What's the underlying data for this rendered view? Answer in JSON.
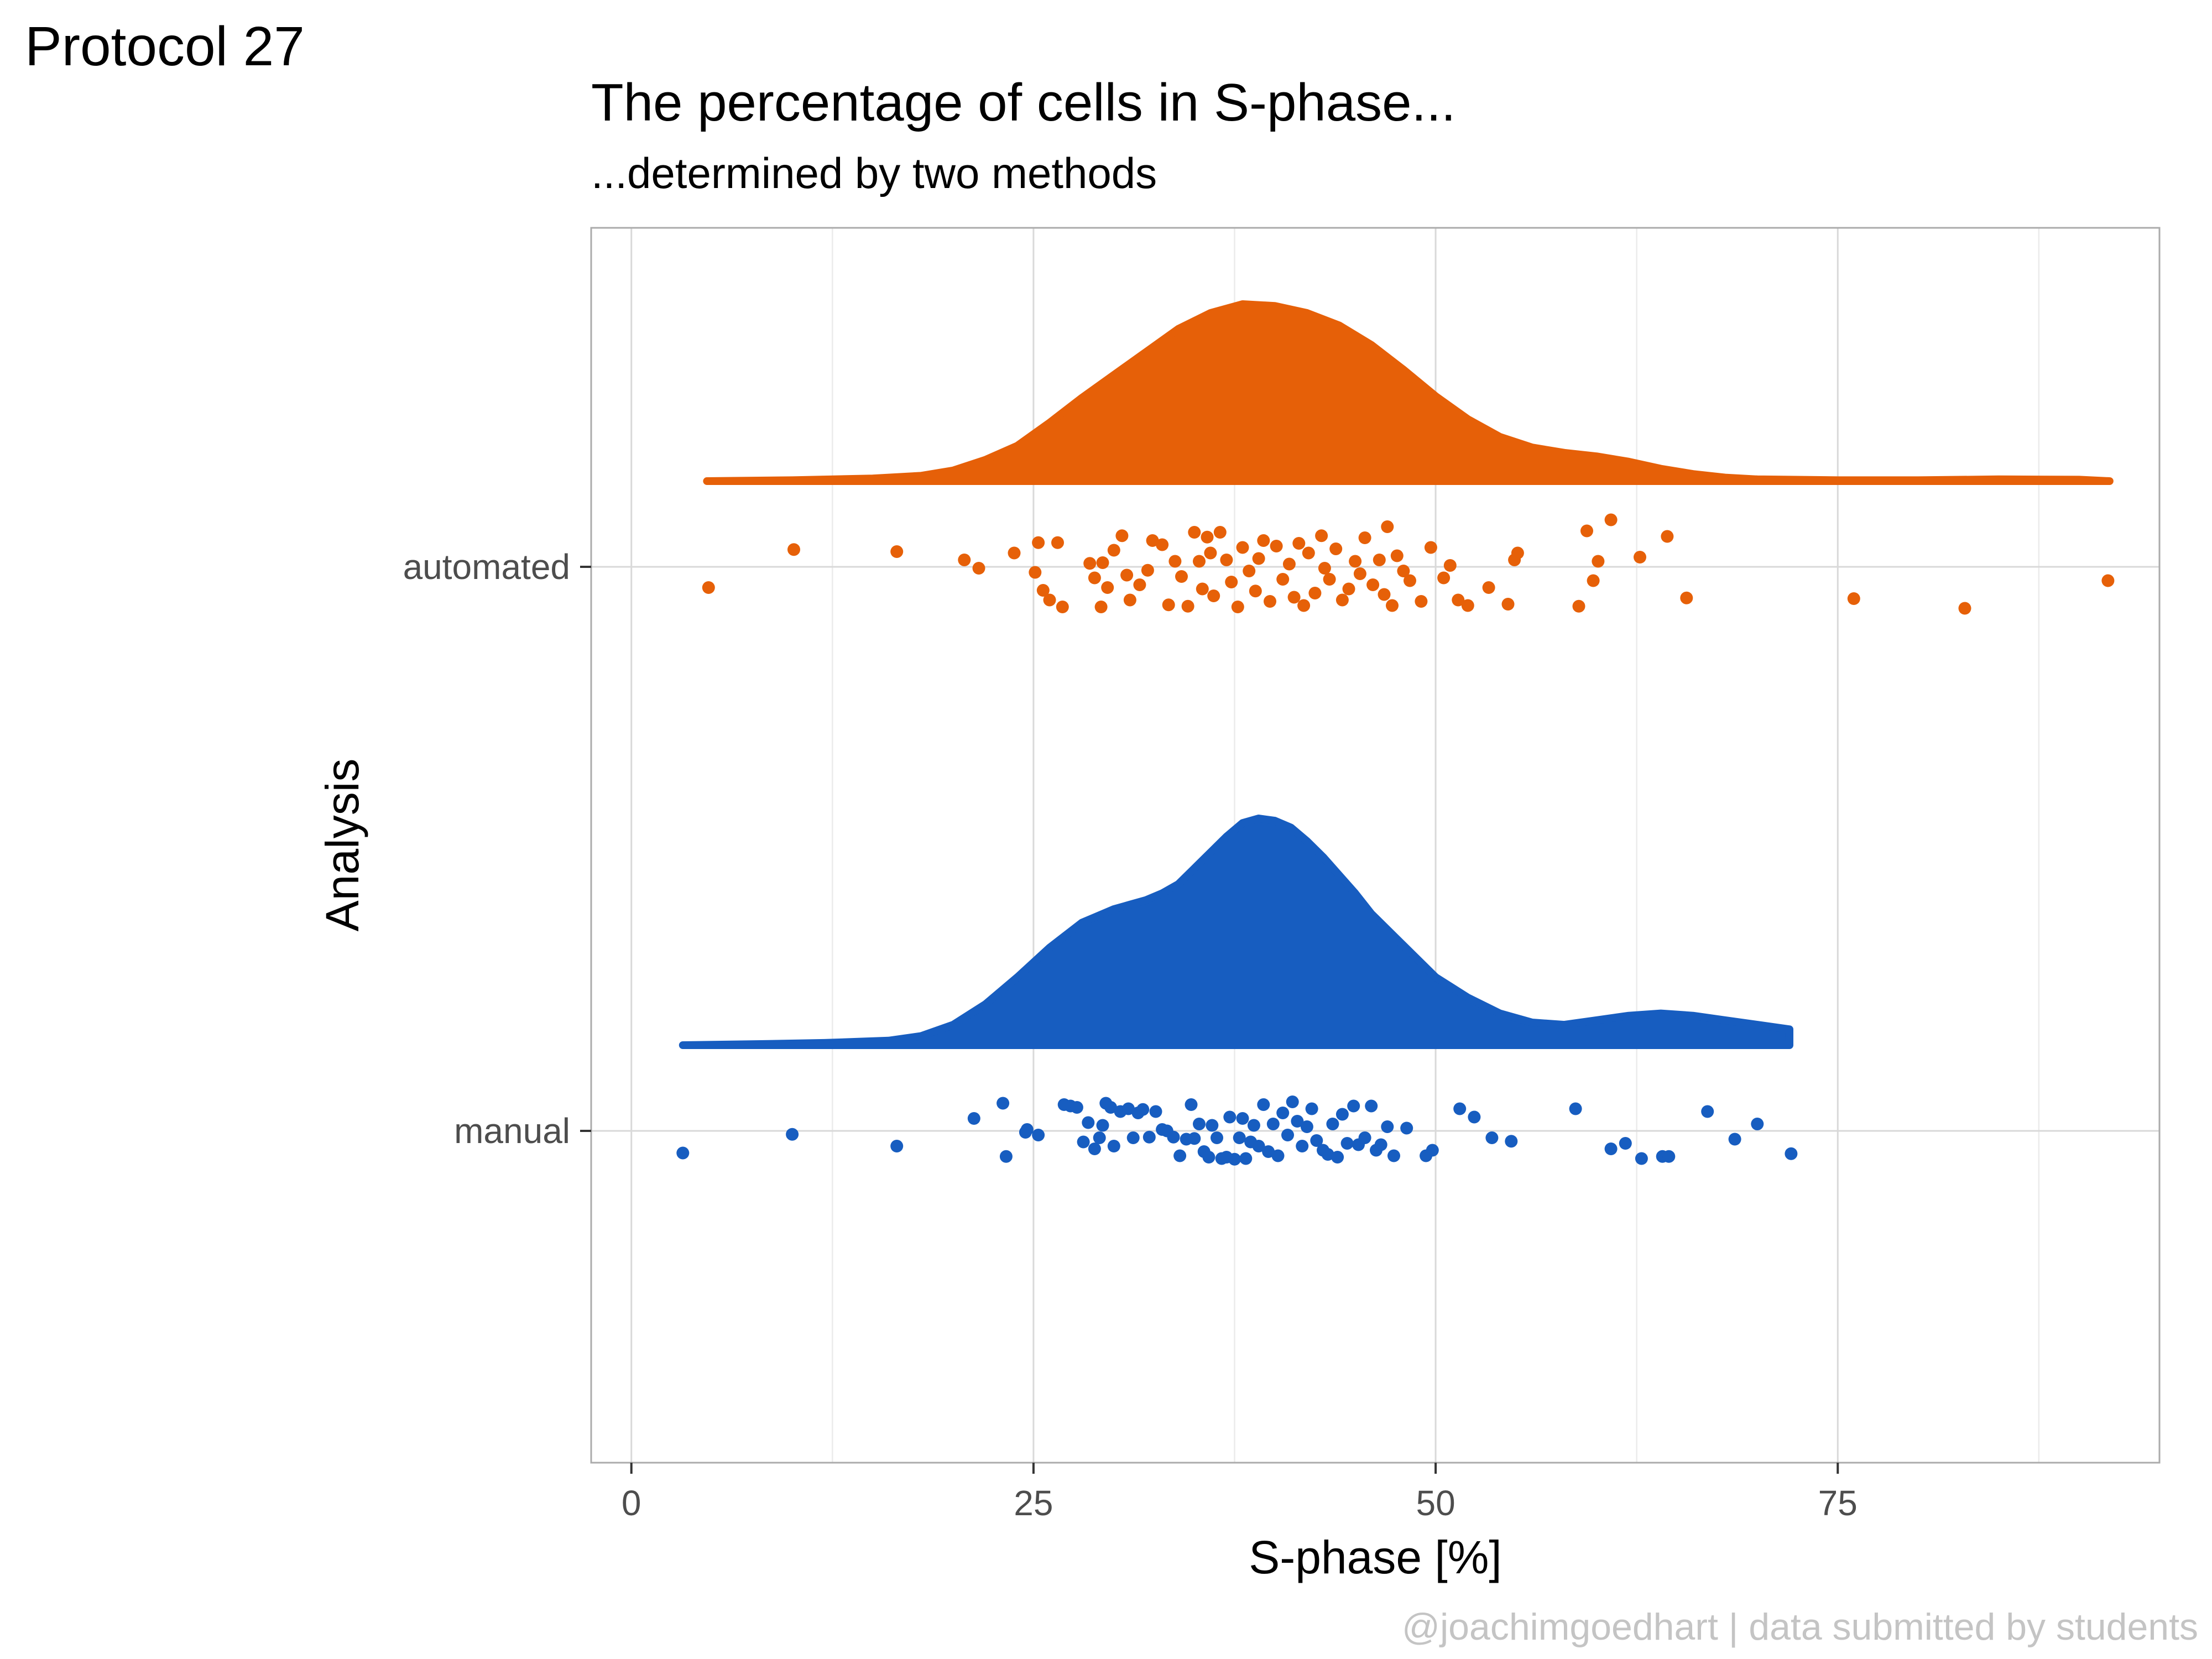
{
  "protocol_label": "Protocol 27",
  "title": "The percentage of cells in S-phase...",
  "subtitle": "...determined by two methods",
  "caption": "@joachimgoedhart | data submitted by students",
  "chart_data": {
    "type": "raincloud",
    "xlabel": "S-phase [%]",
    "ylabel": "Analysis",
    "xlim": [
      -2.5,
      95
    ],
    "x_ticks": [
      0,
      25,
      50,
      75
    ],
    "x_tick_labels": [
      "0",
      "25",
      "50",
      "75"
    ],
    "categories": [
      "automated",
      "manual"
    ],
    "grid": true,
    "series": [
      {
        "name": "automated",
        "color": "#E66008",
        "density": {
          "x": [
            4.7,
            10,
            15,
            18,
            20,
            22,
            24,
            26,
            28,
            30,
            32,
            34,
            36,
            38,
            40,
            42,
            44,
            46,
            48,
            50,
            52,
            54,
            56,
            58,
            60,
            62,
            64,
            66,
            68,
            70,
            75,
            80,
            85,
            90,
            91.9
          ],
          "height": [
            0,
            0.005,
            0.015,
            0.03,
            0.06,
            0.12,
            0.2,
            0.33,
            0.47,
            0.6,
            0.73,
            0.86,
            0.95,
            1.0,
            0.99,
            0.95,
            0.88,
            0.77,
            0.63,
            0.48,
            0.35,
            0.25,
            0.19,
            0.16,
            0.14,
            0.11,
            0.07,
            0.04,
            0.02,
            0.01,
            0.005,
            0.005,
            0.01,
            0.008,
            0
          ]
        },
        "points": [
          4.8,
          10.1,
          16.5,
          20.7,
          21.6,
          23.8,
          25.1,
          25.3,
          25.6,
          26.0,
          26.5,
          26.8,
          28.5,
          28.8,
          29.2,
          29.3,
          29.6,
          30.0,
          30.5,
          30.8,
          31.0,
          31.6,
          32.1,
          32.4,
          33.0,
          33.4,
          33.8,
          34.2,
          34.6,
          35.0,
          35.3,
          35.5,
          35.8,
          36.0,
          36.2,
          36.6,
          37.0,
          37.3,
          37.7,
          38.0,
          38.4,
          38.8,
          39.0,
          39.3,
          39.7,
          40.1,
          40.5,
          40.9,
          41.2,
          41.5,
          41.8,
          42.1,
          42.5,
          42.9,
          43.1,
          43.4,
          43.8,
          44.2,
          44.6,
          45.0,
          45.3,
          45.6,
          46.1,
          46.5,
          46.8,
          47.0,
          47.3,
          47.6,
          48.0,
          48.4,
          49.1,
          49.7,
          50.5,
          50.9,
          51.4,
          52.0,
          53.3,
          54.5,
          54.9,
          55.1,
          58.9,
          59.4,
          59.8,
          60.1,
          60.9,
          62.7,
          64.4,
          65.6,
          76.0,
          82.9,
          91.8
        ],
        "jitter": [
          0.3,
          -0.25,
          -0.22,
          -0.1,
          0.02,
          -0.2,
          0.08,
          -0.35,
          0.34,
          0.48,
          -0.35,
          0.58,
          -0.05,
          0.16,
          0.58,
          -0.06,
          0.3,
          -0.24,
          -0.45,
          0.12,
          0.48,
          0.26,
          0.05,
          -0.38,
          -0.32,
          0.55,
          -0.08,
          0.14,
          0.57,
          -0.5,
          -0.08,
          0.32,
          -0.43,
          -0.2,
          0.42,
          -0.5,
          -0.1,
          0.22,
          0.58,
          -0.28,
          0.06,
          0.35,
          -0.12,
          -0.38,
          0.5,
          -0.3,
          0.18,
          -0.04,
          0.44,
          -0.34,
          0.56,
          -0.2,
          0.38,
          -0.45,
          0.02,
          0.18,
          -0.26,
          0.48,
          0.32,
          -0.08,
          0.1,
          -0.42,
          0.26,
          -0.1,
          0.4,
          -0.58,
          0.56,
          -0.16,
          0.06,
          0.2,
          0.5,
          -0.28,
          0.16,
          -0.02,
          0.48,
          0.56,
          0.3,
          0.54,
          -0.1,
          -0.2,
          0.57,
          -0.52,
          0.2,
          -0.08,
          -0.68,
          -0.14,
          -0.44,
          0.45,
          0.46,
          0.6,
          0.2
        ]
      },
      {
        "name": "manual",
        "color": "#175DC0",
        "density": {
          "x": [
            3.2,
            8,
            12,
            16,
            18,
            20,
            22,
            24,
            26,
            28,
            30,
            31,
            32,
            33,
            34,
            35,
            36,
            37,
            38,
            39,
            40,
            41,
            42,
            43,
            44,
            45,
            46,
            48,
            50,
            52,
            54,
            56,
            58,
            60,
            62,
            64,
            66,
            68,
            70,
            72
          ],
          "height": [
            0,
            0.005,
            0.01,
            0.02,
            0.04,
            0.09,
            0.18,
            0.3,
            0.43,
            0.54,
            0.6,
            0.62,
            0.64,
            0.67,
            0.71,
            0.78,
            0.85,
            0.92,
            0.98,
            1.0,
            0.99,
            0.96,
            0.9,
            0.83,
            0.75,
            0.67,
            0.58,
            0.44,
            0.3,
            0.21,
            0.14,
            0.1,
            0.09,
            0.11,
            0.13,
            0.14,
            0.13,
            0.11,
            0.09,
            0.07
          ]
        },
        "points": [
          3.2,
          10.0,
          16.5,
          21.3,
          23.1,
          23.3,
          24.5,
          24.6,
          25.3,
          26.9,
          27.3,
          27.7,
          28.1,
          28.4,
          28.8,
          29.1,
          29.3,
          29.5,
          29.8,
          30.0,
          30.4,
          30.9,
          31.2,
          31.5,
          31.8,
          32.2,
          32.6,
          33.0,
          33.3,
          33.7,
          34.1,
          34.5,
          34.8,
          35.0,
          35.3,
          35.6,
          35.9,
          36.1,
          36.4,
          36.7,
          37.0,
          37.2,
          37.5,
          37.8,
          38.0,
          38.2,
          38.5,
          38.7,
          39.0,
          39.3,
          39.6,
          39.9,
          40.2,
          40.5,
          40.8,
          41.1,
          41.4,
          41.7,
          42.0,
          42.3,
          42.6,
          43.0,
          43.3,
          43.6,
          43.9,
          44.2,
          44.5,
          44.9,
          45.2,
          45.6,
          46.0,
          46.3,
          46.6,
          47.0,
          47.4,
          48.2,
          49.4,
          49.8,
          51.5,
          52.4,
          53.5,
          54.7,
          58.7,
          60.9,
          61.8,
          62.8,
          64.1,
          64.5,
          66.9,
          68.6,
          70.0,
          72.1
        ],
        "jitter": [
          0.32,
          0.05,
          0.22,
          -0.18,
          -0.4,
          0.37,
          0.02,
          -0.02,
          0.06,
          -0.38,
          -0.36,
          -0.34,
          0.16,
          -0.12,
          0.26,
          0.1,
          -0.08,
          -0.4,
          -0.34,
          0.22,
          -0.28,
          -0.32,
          0.1,
          -0.26,
          -0.31,
          0.09,
          -0.28,
          -0.02,
          0.0,
          0.09,
          0.36,
          0.12,
          -0.38,
          0.11,
          -0.1,
          0.3,
          0.38,
          -0.08,
          0.1,
          0.4,
          0.38,
          -0.2,
          0.41,
          0.1,
          -0.18,
          0.4,
          0.16,
          -0.08,
          0.22,
          -0.38,
          0.3,
          -0.1,
          0.36,
          -0.26,
          0.06,
          -0.42,
          -0.14,
          0.22,
          -0.06,
          -0.32,
          0.14,
          0.28,
          0.34,
          -0.1,
          0.38,
          -0.24,
          0.18,
          -0.36,
          0.2,
          0.1,
          -0.36,
          0.28,
          0.2,
          -0.06,
          0.36,
          -0.04,
          0.36,
          0.28,
          -0.32,
          -0.2,
          0.1,
          0.15,
          -0.32,
          0.26,
          0.18,
          0.4,
          0.37,
          0.37,
          -0.28,
          0.12,
          -0.1,
          0.33
        ]
      }
    ]
  }
}
